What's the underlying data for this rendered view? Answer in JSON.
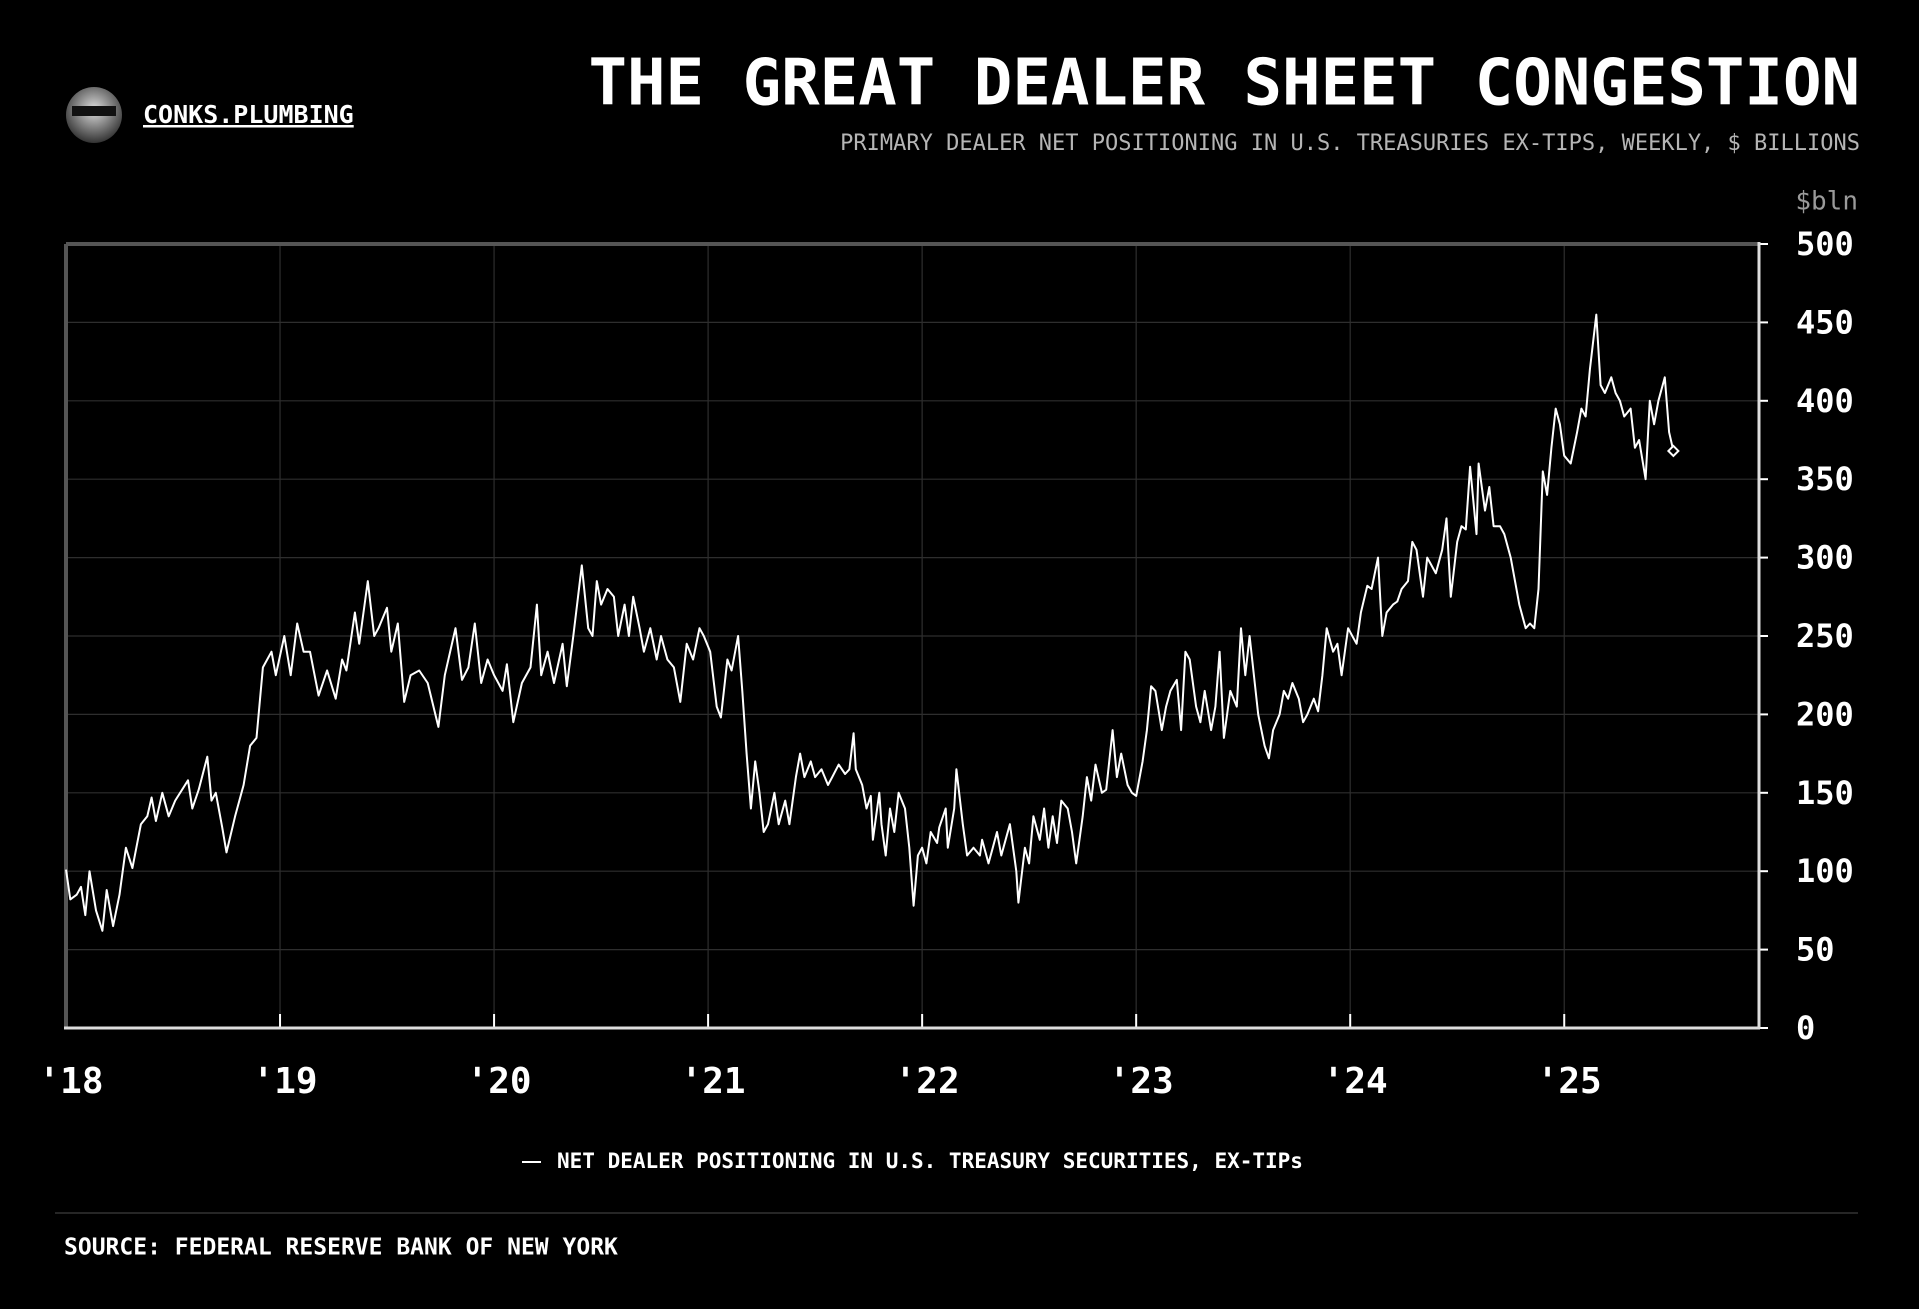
{
  "header": {
    "brand": "CONKS.PLUMBING"
  },
  "chart_data": {
    "type": "line",
    "title": "THE GREAT DEALER SHEET CONGESTION",
    "subtitle": "PRIMARY DEALER NET POSITIONING IN U.S. TREASURIES EX-TIPS, WEEKLY, $ BILLIONS",
    "y_unit": "$bln",
    "source": "SOURCE: FEDERAL RESERVE BANK OF NEW YORK",
    "x": [
      2018.0,
      2018.02,
      2018.05,
      2018.07,
      2018.09,
      2018.11,
      2018.14,
      2018.17,
      2018.19,
      2018.22,
      2018.25,
      2018.28,
      2018.31,
      2018.35,
      2018.38,
      2018.4,
      2018.42,
      2018.45,
      2018.48,
      2018.51,
      2018.57,
      2018.59,
      2018.62,
      2018.66,
      2018.68,
      2018.7,
      2018.73,
      2018.75,
      2018.79,
      2018.83,
      2018.86,
      2018.89,
      2018.92,
      2018.96,
      2018.98,
      2019.02,
      2019.05,
      2019.08,
      2019.11,
      2019.14,
      2019.18,
      2019.22,
      2019.26,
      2019.29,
      2019.31,
      2019.35,
      2019.37,
      2019.41,
      2019.44,
      2019.46,
      2019.5,
      2019.52,
      2019.55,
      2019.58,
      2019.61,
      2019.65,
      2019.69,
      2019.74,
      2019.77,
      2019.82,
      2019.85,
      2019.88,
      2019.91,
      2019.94,
      2019.97,
      2020.0,
      2020.04,
      2020.06,
      2020.09,
      2020.13,
      2020.17,
      2020.2,
      2020.22,
      2020.25,
      2020.28,
      2020.32,
      2020.34,
      2020.37,
      2020.41,
      2020.44,
      2020.46,
      2020.48,
      2020.5,
      2020.53,
      2020.56,
      2020.58,
      2020.61,
      2020.63,
      2020.65,
      2020.68,
      2020.7,
      2020.73,
      2020.76,
      2020.78,
      2020.81,
      2020.84,
      2020.87,
      2020.9,
      2020.93,
      2020.96,
      2020.98,
      2021.01,
      2021.04,
      2021.06,
      2021.09,
      2021.11,
      2021.14,
      2021.16,
      2021.18,
      2021.2,
      2021.22,
      2021.24,
      2021.26,
      2021.28,
      2021.31,
      2021.33,
      2021.36,
      2021.38,
      2021.41,
      2021.43,
      2021.45,
      2021.48,
      2021.5,
      2021.53,
      2021.56,
      2021.58,
      2021.61,
      2021.64,
      2021.66,
      2021.68,
      2021.69,
      2021.72,
      2021.74,
      2021.76,
      2021.77,
      2021.8,
      2021.81,
      2021.83,
      2021.85,
      2021.87,
      2021.89,
      2021.92,
      2021.94,
      2021.96,
      2021.98,
      2022.0,
      2022.02,
      2022.04,
      2022.07,
      2022.08,
      2022.11,
      2022.12,
      2022.15,
      2022.16,
      2022.19,
      2022.21,
      2022.24,
      2022.27,
      2022.28,
      2022.31,
      2022.33,
      2022.35,
      2022.37,
      2022.39,
      2022.41,
      2022.44,
      2022.45,
      2022.48,
      2022.5,
      2022.52,
      2022.55,
      2022.57,
      2022.59,
      2022.61,
      2022.63,
      2022.65,
      2022.68,
      2022.7,
      2022.72,
      2022.75,
      2022.77,
      2022.79,
      2022.81,
      2022.84,
      2022.86,
      2022.89,
      2022.91,
      2022.93,
      2022.96,
      2022.98,
      2023.0,
      2023.03,
      2023.05,
      2023.07,
      2023.09,
      2023.12,
      2023.14,
      2023.16,
      2023.19,
      2023.21,
      2023.23,
      2023.25,
      2023.28,
      2023.3,
      2023.32,
      2023.35,
      2023.37,
      2023.39,
      2023.41,
      2023.44,
      2023.47,
      2023.49,
      2023.51,
      2023.53,
      2023.55,
      2023.57,
      2023.6,
      2023.62,
      2023.64,
      2023.67,
      2023.69,
      2023.71,
      2023.73,
      2023.76,
      2023.78,
      2023.8,
      2023.83,
      2023.85,
      2023.87,
      2023.89,
      2023.92,
      2023.94,
      2023.96,
      2023.99,
      2024.01,
      2024.03,
      2024.05,
      2024.08,
      2024.1,
      2024.13,
      2024.15,
      2024.17,
      2024.2,
      2024.22,
      2024.24,
      2024.27,
      2024.29,
      2024.31,
      2024.34,
      2024.36,
      2024.38,
      2024.4,
      2024.43,
      2024.45,
      2024.47,
      2024.5,
      2024.52,
      2024.54,
      2024.56,
      2024.59,
      2024.6,
      2024.63,
      2024.65,
      2024.67,
      2024.7,
      2024.72,
      2024.75,
      2024.77,
      2024.79,
      2024.82,
      2024.84,
      2024.86,
      2024.88,
      2024.9,
      2024.92,
      2024.94,
      2024.96,
      2024.98,
      2025.0,
      2025.03,
      2025.06,
      2025.08,
      2025.1,
      2025.12,
      2025.15,
      2025.17,
      2025.19,
      2025.22,
      2025.24,
      2025.26,
      2025.28,
      2025.31,
      2025.33,
      2025.35,
      2025.38,
      2025.4,
      2025.42,
      2025.44,
      2025.47,
      2025.49,
      2025.51
    ],
    "series": [
      {
        "name": "NET DEALER POSITIONING IN U.S. TREASURY SECURITIES, EX-TIPs",
        "color": "#ffffff",
        "values": [
          101,
          82,
          85,
          90,
          72,
          100,
          75,
          62,
          88,
          65,
          85,
          115,
          102,
          130,
          135,
          147,
          132,
          150,
          135,
          145,
          158,
          140,
          152,
          173,
          145,
          150,
          128,
          112,
          135,
          155,
          180,
          185,
          230,
          240,
          225,
          250,
          225,
          258,
          240,
          240,
          212,
          228,
          210,
          235,
          228,
          265,
          245,
          285,
          250,
          255,
          268,
          240,
          258,
          208,
          225,
          228,
          220,
          192,
          225,
          255,
          222,
          230,
          258,
          220,
          235,
          225,
          215,
          232,
          195,
          220,
          230,
          270,
          225,
          240,
          220,
          245,
          218,
          250,
          295,
          255,
          250,
          285,
          270,
          280,
          275,
          250,
          270,
          250,
          275,
          255,
          240,
          255,
          235,
          250,
          235,
          230,
          208,
          245,
          235,
          255,
          250,
          240,
          205,
          198,
          235,
          228,
          250,
          215,
          175,
          140,
          170,
          150,
          125,
          130,
          150,
          130,
          145,
          130,
          160,
          175,
          160,
          170,
          160,
          165,
          155,
          160,
          168,
          162,
          165,
          188,
          165,
          155,
          140,
          148,
          120,
          150,
          130,
          110,
          140,
          125,
          150,
          140,
          115,
          78,
          110,
          115,
          105,
          125,
          118,
          128,
          140,
          115,
          140,
          165,
          130,
          110,
          115,
          110,
          120,
          105,
          115,
          125,
          110,
          120,
          130,
          100,
          80,
          115,
          105,
          135,
          120,
          140,
          115,
          135,
          118,
          145,
          140,
          125,
          105,
          135,
          160,
          145,
          168,
          150,
          152,
          190,
          160,
          175,
          155,
          150,
          148,
          170,
          190,
          218,
          215,
          190,
          205,
          215,
          222,
          190,
          240,
          235,
          205,
          195,
          215,
          190,
          205,
          240,
          185,
          215,
          205,
          255,
          225,
          250,
          225,
          200,
          180,
          172,
          190,
          200,
          215,
          210,
          220,
          210,
          195,
          200,
          210,
          202,
          225,
          255,
          240,
          245,
          225,
          255,
          250,
          245,
          265,
          282,
          280,
          300,
          250,
          265,
          270,
          272,
          280,
          285,
          310,
          305,
          275,
          300,
          295,
          290,
          305,
          325,
          275,
          310,
          320,
          318,
          358,
          315,
          360,
          330,
          345,
          320,
          320,
          315,
          300,
          285,
          270,
          255,
          258,
          255,
          280,
          355,
          340,
          370,
          395,
          385,
          365,
          360,
          380,
          395,
          390,
          420,
          455,
          410,
          405,
          415,
          405,
          400,
          390,
          395,
          370,
          375,
          350,
          400,
          385,
          400,
          415,
          380,
          368
        ]
      }
    ],
    "end_marker": "diamond",
    "xlim": [
      2018,
      2025.91
    ],
    "xticks": [
      {
        "value": 2018,
        "label": "'18"
      },
      {
        "value": 2019,
        "label": "'19"
      },
      {
        "value": 2020,
        "label": "'20"
      },
      {
        "value": 2021,
        "label": "'21"
      },
      {
        "value": 2022,
        "label": "'22"
      },
      {
        "value": 2023,
        "label": "'23"
      },
      {
        "value": 2024,
        "label": "'24"
      },
      {
        "value": 2025,
        "label": "'25"
      }
    ],
    "ylim": [
      0,
      500
    ],
    "yticks": [
      0,
      50,
      100,
      150,
      200,
      250,
      300,
      350,
      400,
      450,
      500
    ],
    "grid": true
  }
}
